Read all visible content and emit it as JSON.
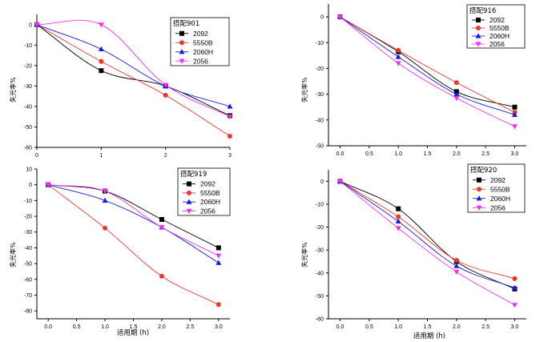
{
  "colors": {
    "2092": "#000000",
    "5550B": "#e8392b",
    "2060H": "#1a1ad8",
    "2056": "#ee33ee"
  },
  "chart_data": [
    {
      "type": "line",
      "legend_title": "搭配901",
      "ylabel": "失光率%",
      "xlabel": "",
      "x_ticks": [
        "0",
        "1",
        "2",
        "3"
      ],
      "x_tick_values": [
        0,
        1,
        2,
        3
      ],
      "y_ticks": [
        "0",
        "-10",
        "-20",
        "-30",
        "-40",
        "-50",
        "-60"
      ],
      "y_tick_values": [
        0,
        -10,
        -20,
        -30,
        -40,
        -50,
        -60
      ],
      "xlim": [
        0,
        3
      ],
      "ylim": [
        -60,
        5
      ],
      "x": [
        0,
        1,
        2,
        3
      ],
      "series": [
        {
          "name": "2092",
          "marker": "square",
          "values": [
            0,
            -22.5,
            -30,
            -44.5
          ]
        },
        {
          "name": "5550B",
          "marker": "circle",
          "values": [
            0,
            -18,
            -34.5,
            -54.5
          ]
        },
        {
          "name": "2060H",
          "marker": "triangle-up",
          "values": [
            0,
            -12,
            -30,
            -40
          ]
        },
        {
          "name": "2056",
          "marker": "triangle-down",
          "values": [
            0,
            0,
            -29.5,
            -45
          ]
        }
      ]
    },
    {
      "type": "line",
      "legend_title": "搭配916",
      "ylabel": "失光率%",
      "xlabel": "",
      "x_ticks": [
        "0.0",
        "0.5",
        "1.0",
        "1.5",
        "2.0",
        "2.5",
        "3.0"
      ],
      "x_tick_values": [
        0,
        0.5,
        1,
        1.5,
        2,
        2.5,
        3
      ],
      "y_ticks": [
        "0",
        "-10",
        "-20",
        "-30",
        "-40",
        "-50"
      ],
      "y_tick_values": [
        0,
        -10,
        -20,
        -30,
        -40,
        -50
      ],
      "xlim": [
        -0.2,
        3.2
      ],
      "ylim": [
        -50,
        5
      ],
      "x": [
        0,
        1,
        2,
        3
      ],
      "series": [
        {
          "name": "2092",
          "marker": "square",
          "values": [
            0,
            -13.5,
            -29,
            -35
          ]
        },
        {
          "name": "5550B",
          "marker": "circle",
          "values": [
            0,
            -13,
            -25.5,
            -37
          ]
        },
        {
          "name": "2060H",
          "marker": "triangle-up",
          "values": [
            0,
            -15.5,
            -30,
            -38
          ]
        },
        {
          "name": "2056",
          "marker": "triangle-down",
          "values": [
            0,
            -18,
            -31.5,
            -42.5
          ]
        }
      ]
    },
    {
      "type": "line",
      "legend_title": "搭配919",
      "ylabel": "失光率%",
      "xlabel": "适用期 (h)",
      "x_ticks": [
        "0.0",
        "0.5",
        "1.0",
        "1.5",
        "2.0",
        "2.5",
        "3.0"
      ],
      "x_tick_values": [
        0,
        0.5,
        1,
        1.5,
        2,
        2.5,
        3
      ],
      "y_ticks": [
        "10",
        "0",
        "-10",
        "-20",
        "-30",
        "-40",
        "-50",
        "-60",
        "-70",
        "-80"
      ],
      "y_tick_values": [
        10,
        0,
        -10,
        -20,
        -30,
        -40,
        -50,
        -60,
        -70,
        -80
      ],
      "xlim": [
        -0.2,
        3.2
      ],
      "ylim": [
        -85,
        10
      ],
      "x": [
        0,
        1,
        2,
        3
      ],
      "series": [
        {
          "name": "2092",
          "marker": "square",
          "values": [
            0,
            -4,
            -22,
            -40
          ]
        },
        {
          "name": "5550B",
          "marker": "circle",
          "values": [
            0,
            -27.5,
            -58,
            -76
          ]
        },
        {
          "name": "2060H",
          "marker": "triangle-up",
          "values": [
            0,
            -10,
            -27,
            -49.5
          ]
        },
        {
          "name": "2056",
          "marker": "triangle-down",
          "values": [
            0,
            -4,
            -27,
            -45
          ]
        }
      ]
    },
    {
      "type": "line",
      "legend_title": "搭配920",
      "ylabel": "失光率%",
      "xlabel": "适用期 (h)",
      "x_ticks": [
        "0.0",
        "0.5",
        "1.0",
        "1.5",
        "2.0",
        "2.5",
        "3.0"
      ],
      "x_tick_values": [
        0,
        0.5,
        1,
        1.5,
        2,
        2.5,
        3
      ],
      "y_ticks": [
        "0",
        "-10",
        "-20",
        "-30",
        "-40",
        "-50",
        "-60"
      ],
      "y_tick_values": [
        0,
        -10,
        -20,
        -30,
        -40,
        -50,
        -60
      ],
      "xlim": [
        -0.2,
        3.2
      ],
      "ylim": [
        -60,
        5
      ],
      "x": [
        0,
        1,
        2,
        3
      ],
      "series": [
        {
          "name": "2092",
          "marker": "square",
          "values": [
            0,
            -12,
            -35,
            -47
          ]
        },
        {
          "name": "5550B",
          "marker": "circle",
          "values": [
            0,
            -15.5,
            -34.5,
            -42.5
          ]
        },
        {
          "name": "2060H",
          "marker": "triangle-up",
          "values": [
            0,
            -17.5,
            -37,
            -46.5
          ]
        },
        {
          "name": "2056",
          "marker": "triangle-down",
          "values": [
            0,
            -20.5,
            -39.5,
            -54
          ]
        }
      ]
    }
  ]
}
